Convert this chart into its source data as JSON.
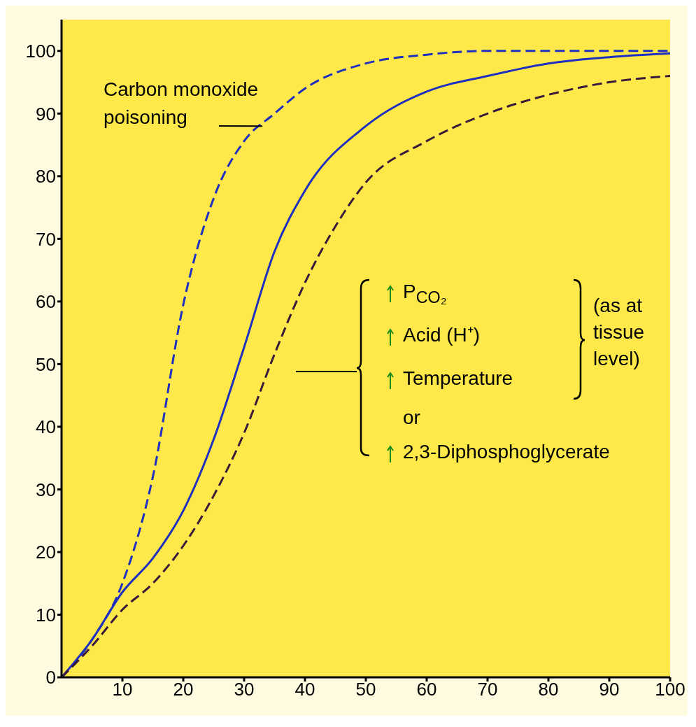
{
  "chart_data": {
    "type": "line",
    "series": [
      {
        "color": "#1f2fbf",
        "line_style": "dashed",
        "x": [
          0,
          5,
          10,
          15,
          20,
          25,
          30,
          35,
          40,
          50,
          60,
          70,
          80,
          90,
          100
        ],
        "values": [
          0,
          6,
          15,
          32,
          59.5,
          76.5,
          85.6,
          90,
          94,
          98,
          99.4,
          100,
          100,
          100,
          100
        ]
      },
      {
        "color": "#1f2fbf",
        "line_style": "solid",
        "x": [
          0,
          5,
          10,
          15,
          20,
          25,
          30,
          35,
          40,
          50,
          60,
          70,
          80,
          90,
          100
        ],
        "values": [
          0,
          6,
          13.6,
          19,
          26.6,
          38,
          52.7,
          68,
          77.7,
          88,
          93.5,
          96,
          98,
          99,
          99.6
        ]
      },
      {
        "color": "#3a1a3a",
        "line_style": "dashed",
        "x": [
          0,
          5,
          10,
          15,
          20,
          25,
          30,
          35,
          40,
          45,
          50,
          60,
          70,
          80,
          90,
          100
        ],
        "values": [
          0,
          5,
          10.8,
          15,
          21,
          29,
          39,
          51.6,
          63,
          72,
          79,
          85.6,
          90,
          93,
          95,
          96
        ]
      }
    ],
    "xlim": [
      0,
      100
    ],
    "xticks": [
      10,
      20,
      30,
      40,
      50,
      60,
      70,
      80,
      90,
      100
    ],
    "ylim": [
      0,
      105
    ],
    "yticks": [
      0,
      10,
      20,
      30,
      40,
      50,
      60,
      70,
      80,
      90,
      100
    ],
    "grid": false,
    "legend": false,
    "marker": "none",
    "annotations": [
      {
        "text": "Carbon monoxide poisoning",
        "x": 33,
        "y": 88
      },
      "P$_{CO₂}$",
      "Acid (H⁺)",
      "Temperature",
      "or",
      "2,3-Diphosphoglycerate",
      "(as at tissue level)"
    ]
  }
}
